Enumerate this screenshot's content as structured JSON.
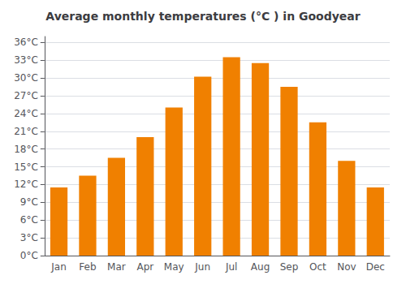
{
  "chart_data": {
    "type": "bar",
    "title": "Average monthly temperatures (°C ) in Goodyear",
    "categories": [
      "Jan",
      "Feb",
      "Mar",
      "Apr",
      "May",
      "Jun",
      "Jul",
      "Aug",
      "Sep",
      "Oct",
      "Nov",
      "Dec"
    ],
    "values": [
      11.5,
      13.5,
      16.5,
      20.0,
      25.0,
      30.2,
      33.5,
      32.5,
      28.5,
      22.5,
      16.0,
      11.5
    ],
    "color": "#F08000",
    "ylim": [
      0,
      37
    ],
    "yticks": [
      {
        "value": 0,
        "label": "0°C"
      },
      {
        "value": 3,
        "label": "3°C"
      },
      {
        "value": 6,
        "label": "6°C"
      },
      {
        "value": 9,
        "label": "9°C"
      },
      {
        "value": 12,
        "label": "12°C"
      },
      {
        "value": 15,
        "label": "15°C"
      },
      {
        "value": 18,
        "label": "18°C"
      },
      {
        "value": 21,
        "label": "21°C"
      },
      {
        "value": 24,
        "label": "24°C"
      },
      {
        "value": 27,
        "label": "27°C"
      },
      {
        "value": 30,
        "label": "30°C"
      },
      {
        "value": 33,
        "label": "33°C"
      },
      {
        "value": 36,
        "label": "36°C"
      }
    ],
    "grid": true
  }
}
